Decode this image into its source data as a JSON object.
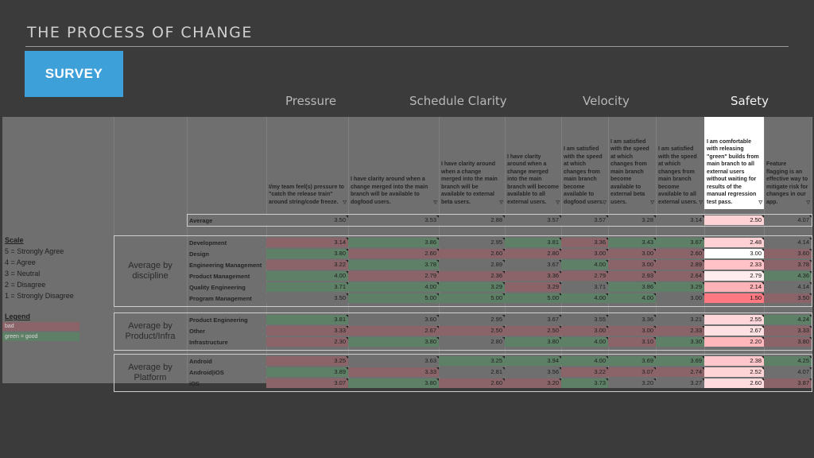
{
  "header": {
    "title": "THE PROCESS OF CHANGE",
    "button": "SURVEY"
  },
  "categories": [
    "Pressure",
    "Schedule Clarity",
    "Velocity",
    "Safety"
  ],
  "questions": [
    "I/my team feel(s) pressure to \"catch the release train\" around string/code freeze.",
    "I have clarity around when a change merged into the main branch will be available to dogfood users.",
    "I have clarity around when a change merged into the main branch will be available to external beta users.",
    "I have clarity around when a change merged into the main branch will become available to all external users.",
    "I am satisfied with the speed at which changes from main branch become available to dogfood users.",
    "I am satisfied with the speed at which changes from main branch become available to external beta users.",
    "I am satisfied with the speed at which changes from main branch become available to all external users.",
    "I am comfortable with releasing \"green\" builds from main branch to all external users without waiting for results of the manual regression test pass.",
    "Feature flagging is an effective way to mitigate risk for changes in our app."
  ],
  "average": {
    "label": "Average",
    "values": [
      "3.50",
      "3.53",
      "2.88",
      "3.57",
      "3.57",
      "3.28",
      "3.14",
      "2.50",
      "4.07"
    ]
  },
  "scale": {
    "title": "Scale",
    "items": [
      "5 = Strongly Agree",
      "4 = Agree",
      "3 = Neutral",
      "2 = Disagree",
      "1 = Strongly Disagree"
    ]
  },
  "legend": {
    "title": "Legend",
    "bad": "bad",
    "good": "green = good"
  },
  "groups": [
    {
      "label": "Average by discipline",
      "rows": [
        {
          "name": "Development",
          "values": [
            "3.14",
            "3.86",
            "2.95",
            "3.81",
            "3.36",
            "3.43",
            "3.67",
            "2.48",
            "4.14"
          ]
        },
        {
          "name": "Design",
          "values": [
            "3.80",
            "2.60",
            "2.60",
            "2.80",
            "3.00",
            "3.00",
            "2.60",
            "3.00",
            "3.60"
          ]
        },
        {
          "name": "Engineering Management",
          "values": [
            "3.22",
            "3.78",
            "2.89",
            "3.67",
            "4.00",
            "3.00",
            "2.89",
            "2.33",
            "3.78"
          ]
        },
        {
          "name": "Product Management",
          "values": [
            "4.00",
            "2.79",
            "2.36",
            "3.36",
            "2.79",
            "2.93",
            "2.64",
            "2.79",
            "4.36"
          ]
        },
        {
          "name": "Quality Engineering",
          "values": [
            "3.71",
            "4.00",
            "3.29",
            "3.29",
            "3.71",
            "3.86",
            "3.29",
            "2.14",
            "4.14"
          ]
        },
        {
          "name": "Program Management",
          "values": [
            "3.50",
            "5.00",
            "5.00",
            "5.00",
            "4.00",
            "4.00",
            "3.00",
            "1.50",
            "3.50"
          ]
        }
      ]
    },
    {
      "label": "Average by Product/Infra",
      "rows": [
        {
          "name": "Product Engineering",
          "values": [
            "3.81",
            "3.60",
            "2.95",
            "3.67",
            "3.55",
            "3.36",
            "3.21",
            "2.55",
            "4.24"
          ]
        },
        {
          "name": "Other",
          "values": [
            "3.33",
            "2.67",
            "2.50",
            "2.50",
            "3.00",
            "3.00",
            "2.33",
            "2.67",
            "3.33"
          ]
        },
        {
          "name": "Infrastructure",
          "values": [
            "2.30",
            "3.80",
            "2.80",
            "3.80",
            "4.00",
            "3.10",
            "3.30",
            "2.20",
            "3.80"
          ]
        }
      ]
    },
    {
      "label": "Average by Platform",
      "rows": [
        {
          "name": "Android",
          "values": [
            "3.25",
            "3.63",
            "3.25",
            "3.94",
            "4.00",
            "3.69",
            "3.69",
            "2.38",
            "4.25"
          ]
        },
        {
          "name": "Android|iOS",
          "values": [
            "3.89",
            "3.33",
            "2.81",
            "3.56",
            "3.22",
            "3.07",
            "2.74",
            "2.52",
            "4.07"
          ]
        },
        {
          "name": "iOS",
          "values": [
            "3.07",
            "3.80",
            "2.60",
            "3.20",
            "3.73",
            "3.20",
            "3.27",
            "2.60",
            "3.87"
          ]
        }
      ]
    }
  ],
  "colors": {
    "good": "#5d8066",
    "bad": "#8a6468",
    "highlight": "#ffffff",
    "accent": "#3ea0d9"
  }
}
